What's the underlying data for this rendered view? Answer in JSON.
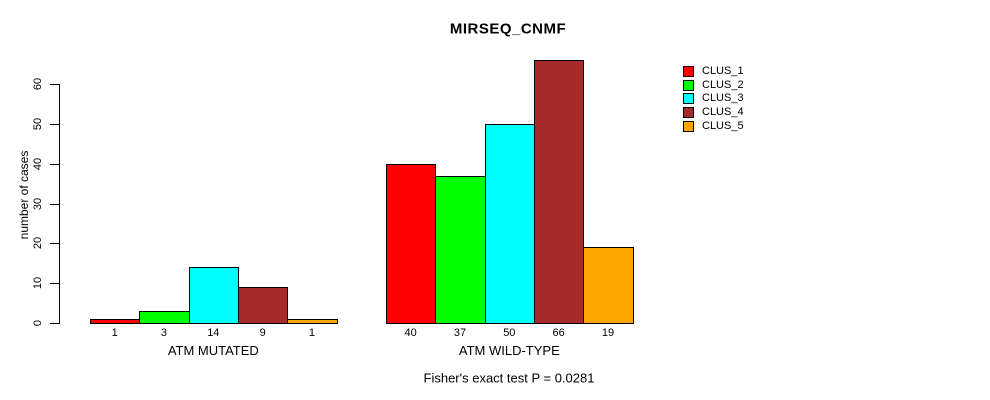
{
  "chart_data": {
    "type": "bar",
    "title": "MIRSEQ_CNMF",
    "ylabel": "number of cases",
    "xlabel": "",
    "subtitle": "Fisher's exact test P = 0.0281",
    "ylim": [
      0,
      66
    ],
    "yticks": [
      0,
      10,
      20,
      30,
      40,
      50,
      60
    ],
    "grid": false,
    "legend_position": "right",
    "legend": [
      "CLUS_1",
      "CLUS_2",
      "CLUS_3",
      "CLUS_4",
      "CLUS_5"
    ],
    "colors": [
      "#ff0000",
      "#00ff00",
      "#00ffff",
      "#a52a2a",
      "#ffa500"
    ],
    "groups": [
      {
        "label": "ATM MUTATED",
        "values": [
          1,
          3,
          14,
          9,
          1
        ]
      },
      {
        "label": "ATM WILD-TYPE",
        "values": [
          40,
          37,
          50,
          66,
          19
        ]
      }
    ]
  }
}
